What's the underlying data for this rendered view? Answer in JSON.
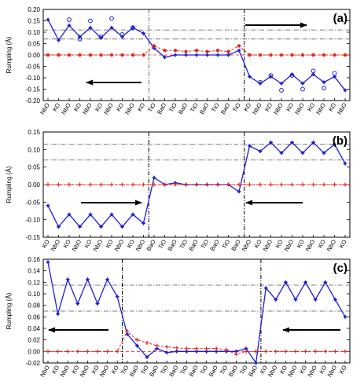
{
  "colors": {
    "blue": "#1f1fd6",
    "red": "#e8261c",
    "axis": "#000000",
    "ref": "#555555"
  },
  "chart_data": [
    {
      "type": "line",
      "panel_label": "(a)",
      "ylabel": "Rumpling (Å)",
      "ylim": [
        -0.2,
        0.2
      ],
      "yticks": [
        -0.2,
        -0.15,
        -0.1,
        -0.05,
        0,
        0.05,
        0.1,
        0.15,
        0.2
      ],
      "categories": [
        "NbO",
        "KO",
        "NbO",
        "KO",
        "NbO",
        "KO",
        "NbO",
        "KO",
        "NbO",
        "KO",
        "TiO",
        "BaO",
        "TiO",
        "BaO",
        "TiO",
        "BaO",
        "TiO",
        "BaO",
        "TiO",
        "KO",
        "NbO",
        "KO",
        "NbO",
        "KO",
        "NbO",
        "KO",
        "NbO",
        "KO",
        "NbO"
      ],
      "hlines": [
        0.11,
        0.07
      ],
      "vlines": [
        9.5,
        18.5
      ],
      "arrows": [
        "right",
        "left"
      ],
      "series": [
        {
          "values": [
            0.155,
            0.065,
            0.13,
            0.08,
            0.12,
            0.075,
            0.12,
            0.08,
            0.12,
            0.095,
            0.03,
            -0.01,
            0.0,
            0.0,
            0.0,
            0.0,
            0.0,
            0.0,
            0.02,
            -0.095,
            -0.125,
            -0.095,
            -0.125,
            -0.085,
            -0.125,
            -0.085,
            -0.12,
            -0.095,
            -0.155
          ]
        },
        {
          "values": [
            0.0,
            0.0,
            0.0,
            0.0,
            0.0,
            0.0,
            0.0,
            0.0,
            0.0,
            0.0,
            0.04,
            0.02,
            0.02,
            0.015,
            0.02,
            0.015,
            0.02,
            0.015,
            0.04,
            0.0,
            0.0,
            0.0,
            0.0,
            0.0,
            0.0,
            0.0,
            0.0,
            0.0,
            0.0
          ]
        },
        {
          "values": [
            null,
            null,
            0.155,
            0.07,
            0.15,
            0.08,
            0.16,
            0.09,
            0.12,
            null,
            null,
            null,
            null,
            null,
            null,
            null,
            null,
            null,
            null,
            null,
            -0.12,
            -0.09,
            -0.155,
            -0.09,
            -0.15,
            -0.07,
            -0.145,
            -0.08,
            null
          ]
        }
      ]
    },
    {
      "type": "line",
      "panel_label": "(b)",
      "ylabel": "Rumpling (Å)",
      "ylim": [
        -0.15,
        0.15
      ],
      "yticks": [
        -0.15,
        -0.1,
        -0.05,
        0,
        0.05,
        0.1,
        0.15
      ],
      "categories": [
        "KO",
        "NbO",
        "KO",
        "NbO",
        "KO",
        "NbO",
        "KO",
        "NbO",
        "KO",
        "NbO",
        "BaO",
        "TiO",
        "BaO",
        "TiO",
        "BaO",
        "TiO",
        "BaO",
        "TiO",
        "BaO",
        "NbO",
        "KO",
        "NbO",
        "KO",
        "NbO",
        "KO",
        "NbO",
        "KO",
        "NbO",
        "KO"
      ],
      "hlines": [
        0.115,
        0.07
      ],
      "vlines": [
        9.5,
        18.5
      ],
      "arrows": [
        "right",
        "left"
      ],
      "series": [
        {
          "values": [
            -0.06,
            -0.12,
            -0.085,
            -0.12,
            -0.085,
            -0.12,
            -0.085,
            -0.12,
            -0.085,
            -0.11,
            0.02,
            0.0,
            0.005,
            0.0,
            0.0,
            0.0,
            0.0,
            0.0,
            -0.02,
            0.11,
            0.095,
            0.12,
            0.09,
            0.12,
            0.09,
            0.12,
            0.09,
            0.115,
            0.06
          ]
        },
        {
          "values": [
            0.0,
            0.0,
            0.0,
            0.0,
            0.0,
            0.0,
            0.0,
            0.0,
            0.0,
            0.0,
            0.0,
            0.0,
            0.0,
            0.0,
            0.0,
            0.0,
            0.0,
            0.0,
            0.0,
            0.0,
            0.0,
            0.0,
            0.0,
            0.0,
            0.0,
            0.0,
            0.0,
            0.0,
            0.0
          ]
        }
      ]
    },
    {
      "type": "line",
      "panel_label": "(c)",
      "ylabel": "Rumpling (Å)",
      "ylim": [
        -0.02,
        0.16
      ],
      "yticks": [
        -0.02,
        0,
        0.02,
        0.04,
        0.06,
        0.08,
        0.1,
        0.12,
        0.14,
        0.16
      ],
      "categories": [
        "NbO",
        "KO",
        "NbO",
        "KO",
        "NbO",
        "KO",
        "NbO",
        "KO",
        "TiO",
        "BaO",
        "TiO",
        "BaO",
        "TiO",
        "BaO",
        "TiO",
        "BaO",
        "TiO",
        "BaO",
        "TiO",
        "BaO",
        "TiO",
        "BaO",
        "KO",
        "NbO",
        "KO",
        "NbO",
        "KO",
        "NbO",
        "KO",
        "NbO",
        "KO"
      ],
      "hlines": [
        0.115,
        0.07
      ],
      "vlines": [
        7.5,
        21.5
      ],
      "arrows": [
        "left",
        "left"
      ],
      "series": [
        {
          "values": [
            0.155,
            0.065,
            0.125,
            0.083,
            0.125,
            0.083,
            0.125,
            0.095,
            0.03,
            0.01,
            -0.01,
            0.005,
            -0.002,
            0.0,
            0.0,
            0.0,
            0.0,
            0.0,
            0.0,
            0.0,
            0.005,
            -0.02,
            0.11,
            0.09,
            0.12,
            0.09,
            0.12,
            0.09,
            0.12,
            0.09,
            0.06
          ]
        },
        {
          "values": [
            0.0,
            0.0,
            0.0,
            0.0,
            0.0,
            0.0,
            0.0,
            0.0,
            0.035,
            0.02,
            0.015,
            0.01,
            0.008,
            0.006,
            0.005,
            0.005,
            0.005,
            0.005,
            0.003,
            -0.005,
            0.0,
            0.0,
            0.0,
            0.0,
            0.0,
            0.0,
            0.0,
            0.0,
            0.0,
            0.0,
            0.0
          ]
        }
      ]
    }
  ]
}
